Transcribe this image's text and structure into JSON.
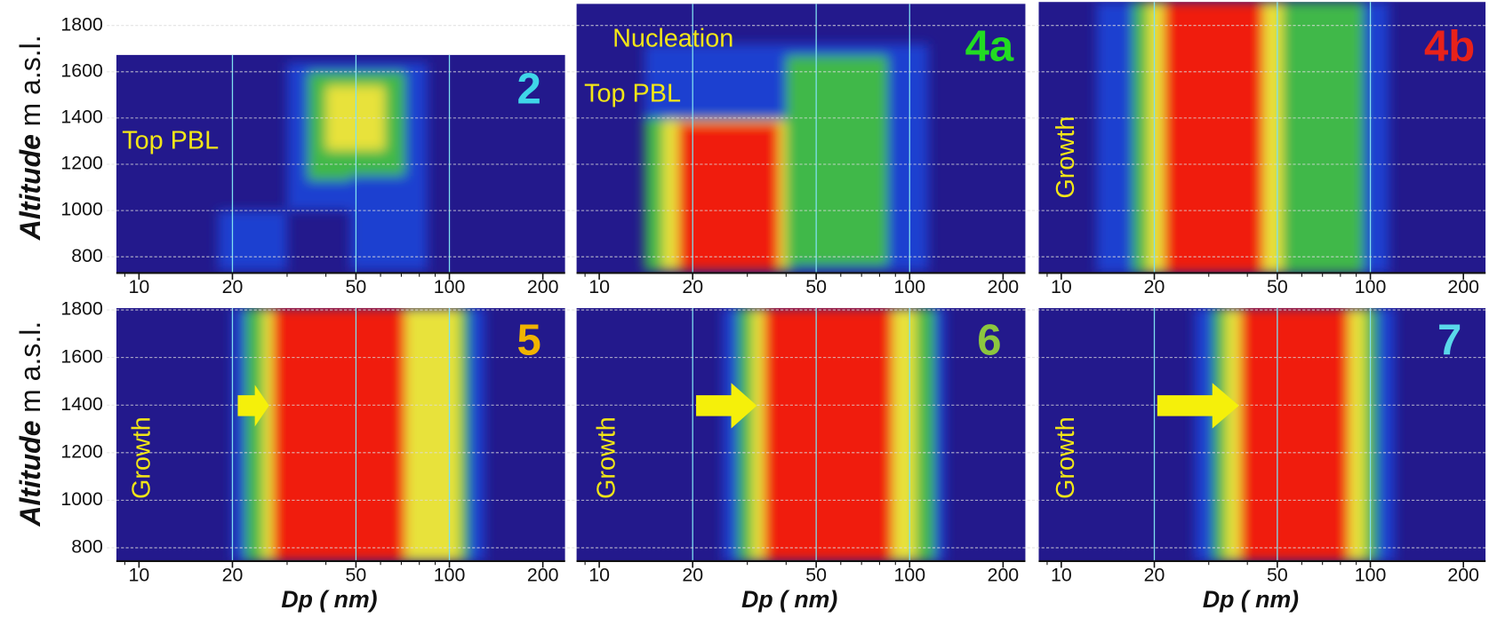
{
  "chart_data": {
    "type": "heatmap-grid",
    "ylabel_italic": "Altitude",
    "ylabel_rest": "m a.s.l.",
    "log_x": true,
    "xgrid": [
      20,
      50,
      100
    ],
    "xminor": [
      9,
      30,
      40,
      60,
      70,
      80,
      90
    ],
    "background": "#23198c",
    "rows": [
      {
        "ylim": [
          730,
          1902
        ],
        "yticks": [
          800,
          1000,
          1200,
          1400,
          1600,
          1800
        ],
        "panels": [
          {
            "label": "2",
            "label_color": "#3fd6e8",
            "xlim": [
              8.45,
              236
            ],
            "ylim": [
              730,
              1673
            ],
            "xticks": [
              10,
              20,
              50,
              100,
              200
            ],
            "annotations": [
              "Top PBL"
            ],
            "regions": [
              {
                "x": [
                  18,
                  30
                ],
                "y": [
                  740,
                  1000
                ],
                "color": "#1d3fd0"
              },
              {
                "x": [
                  30,
                  85
                ],
                "y": [
                  1000,
                  1640
                ],
                "color": "#1d3fd0"
              },
              {
                "x": [
                  35,
                  72
                ],
                "y": [
                  1130,
                  1600
                ],
                "color": "#3fb84a"
              },
              {
                "x": [
                  40,
                  62
                ],
                "y": [
                  1260,
                  1540
                ],
                "color": "#e8e23a"
              },
              {
                "x": [
                  48,
                  85
                ],
                "y": [
                  740,
                  1150
                ],
                "color": "#1d3fd0"
              }
            ]
          },
          {
            "label": "4a",
            "label_color": "#22dd22",
            "xlim": [
              8.45,
              236
            ],
            "ylim": [
              730,
              1894
            ],
            "xticks": [
              10,
              20,
              50,
              100,
              200
            ],
            "annotations": [
              "Nucleation",
              "Top PBL"
            ],
            "regions": [
              {
                "x": [
                  14,
                  115
                ],
                "y": [
                  740,
                  1720
                ],
                "color": "#1d3fd0"
              },
              {
                "x": [
                  40,
                  85
                ],
                "y": [
                  760,
                  1670
                ],
                "color": "#3fb84a"
              },
              {
                "x": [
                  14,
                  42
                ],
                "y": [
                  740,
                  1400
                ],
                "color": "#3fb84a"
              },
              {
                "x": [
                  16,
                  40
                ],
                "y": [
                  740,
                  1390
                ],
                "color": "#e8e23a"
              },
              {
                "x": [
                  18,
                  38
                ],
                "y": [
                  740,
                  1380
                ],
                "color": "#f01c10"
              }
            ]
          },
          {
            "label": "4b",
            "label_color": "#e8221a",
            "xlim": [
              8.45,
              236
            ],
            "ylim": [
              730,
              1902
            ],
            "xticks": [
              10,
              20,
              50,
              100,
              200
            ],
            "annotations": [
              "Growth"
            ],
            "regions": [
              {
                "x": [
                  13,
                  115
                ],
                "y": [
                  730,
                  1902
                ],
                "color": "#1d3fd0"
              },
              {
                "x": [
                  17,
                  95
                ],
                "y": [
                  730,
                  1902
                ],
                "color": "#3fb84a"
              },
              {
                "x": [
                  19,
                  52
                ],
                "y": [
                  730,
                  1902
                ],
                "color": "#e8e23a"
              },
              {
                "x": [
                  21.5,
                  45
                ],
                "y": [
                  730,
                  1902
                ],
                "color": "#f01c10"
              }
            ]
          }
        ]
      },
      {
        "ylim": [
          744,
          1808
        ],
        "yticks": [
          800,
          1000,
          1200,
          1400,
          1600,
          1800
        ],
        "panels": [
          {
            "label": "5",
            "label_color": "#f0b400",
            "xlim": [
              8.45,
              236
            ],
            "ylim": [
              744,
              1808
            ],
            "xticks": [
              10,
              20,
              50,
              100,
              200
            ],
            "xlabel": "Dp ( nm)",
            "annotations": [
              "Growth"
            ],
            "regions": [
              {
                "x": [
                  20,
                  130
                ],
                "y": [
                  744,
                  1808
                ],
                "color": "#1d3fd0"
              },
              {
                "x": [
                  22,
                  115
                ],
                "y": [
                  744,
                  1808
                ],
                "color": "#3fb84a"
              },
              {
                "x": [
                  25,
                  108
                ],
                "y": [
                  744,
                  1808
                ],
                "color": "#e8e23a"
              },
              {
                "x": [
                  27,
                  72
                ],
                "y": [
                  744,
                  1808
                ],
                "color": "#f01c10"
              }
            ]
          },
          {
            "label": "6",
            "label_color": "#8cc63f",
            "xlim": [
              8.45,
              236
            ],
            "ylim": [
              744,
              1808
            ],
            "xticks": [
              10,
              20,
              50,
              100,
              200
            ],
            "xlabel": "Dp ( nm)",
            "annotations": [
              "Growth"
            ],
            "regions": [
              {
                "x": [
                  25,
                  130
                ],
                "y": [
                  744,
                  1808
                ],
                "color": "#1d3fd0"
              },
              {
                "x": [
                  28,
                  120
                ],
                "y": [
                  744,
                  1808
                ],
                "color": "#3fb84a"
              },
              {
                "x": [
                  31,
                  105
                ],
                "y": [
                  744,
                  1808
                ],
                "color": "#e8e23a"
              },
              {
                "x": [
                  34,
                  88
                ],
                "y": [
                  744,
                  1808
                ],
                "color": "#f01c10"
              }
            ]
          },
          {
            "label": "7",
            "label_color": "#5ad8ea",
            "xlim": [
              8.45,
              236
            ],
            "ylim": [
              744,
              1808
            ],
            "xticks": [
              10,
              20,
              50,
              100,
              200
            ],
            "xlabel": "Dp ( nm)",
            "annotations": [
              "Growth"
            ],
            "regions": [
              {
                "x": [
                  27,
                  120
                ],
                "y": [
                  744,
                  1808
                ],
                "color": "#1d3fd0"
              },
              {
                "x": [
                  31,
                  105
                ],
                "y": [
                  744,
                  1808
                ],
                "color": "#3fb84a"
              },
              {
                "x": [
                  34,
                  96
                ],
                "y": [
                  744,
                  1808
                ],
                "color": "#e8e23a"
              },
              {
                "x": [
                  38,
                  85
                ],
                "y": [
                  744,
                  1808
                ],
                "color": "#f01c10"
              }
            ]
          }
        ]
      }
    ]
  }
}
